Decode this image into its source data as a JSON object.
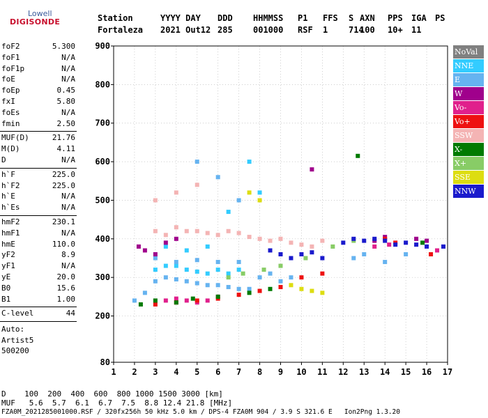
{
  "logo": {
    "line1": "Lowell",
    "line2": "DIGISONDE"
  },
  "header": {
    "row1": [
      "Station",
      "YYYY DAY",
      "DDD",
      "HHMMSS",
      "P1",
      "FFS",
      "S",
      "AXN",
      "PPS",
      "IGA",
      "PS"
    ],
    "row2": [
      "Fortaleza",
      "2021 Out12",
      "285",
      "001000",
      "RSF",
      "1",
      "714",
      "100",
      "10+",
      "11"
    ]
  },
  "params_group1": [
    {
      "k": "foF2",
      "v": "5.300"
    },
    {
      "k": "foF1",
      "v": "N/A"
    },
    {
      "k": "foF1p",
      "v": "N/A"
    },
    {
      "k": "foE",
      "v": "N/A"
    },
    {
      "k": "foEp",
      "v": "0.45"
    },
    {
      "k": "fxI",
      "v": "5.80"
    },
    {
      "k": "foEs",
      "v": "N/A"
    },
    {
      "k": "fmin",
      "v": "2.50"
    }
  ],
  "params_group2": [
    {
      "k": "MUF(D)",
      "v": "21.76"
    },
    {
      "k": "M(D)",
      "v": "4.11"
    },
    {
      "k": "D",
      "v": "N/A"
    }
  ],
  "params_group3": [
    {
      "k": "h`F",
      "v": "225.0"
    },
    {
      "k": "h`F2",
      "v": "225.0"
    },
    {
      "k": "h`E",
      "v": "N/A"
    },
    {
      "k": "h`Es",
      "v": "N/A"
    }
  ],
  "params_group4": [
    {
      "k": "hmF2",
      "v": "230.1"
    },
    {
      "k": "hmF1",
      "v": "N/A"
    },
    {
      "k": "hmE",
      "v": "110.0"
    },
    {
      "k": "yF2",
      "v": "8.9"
    },
    {
      "k": "yF1",
      "v": "N/A"
    },
    {
      "k": "yE",
      "v": "20.0"
    },
    {
      "k": "B0",
      "v": "15.6"
    },
    {
      "k": "B1",
      "v": "1.00"
    }
  ],
  "clevel": {
    "k": "C-level",
    "v": "44"
  },
  "auto": [
    "Auto:",
    "Artist5",
    "500200"
  ],
  "legend": [
    {
      "label": "NoVal",
      "color": "#808080"
    },
    {
      "label": "NNE",
      "color": "#33ccff"
    },
    {
      "label": "E",
      "color": "#66b3f0"
    },
    {
      "label": "W",
      "color": "#a0008c"
    },
    {
      "label": "Vo-",
      "color": "#e0208c"
    },
    {
      "label": "Vo+",
      "color": "#ee1111"
    },
    {
      "label": "SSW",
      "color": "#f4b4b4"
    },
    {
      "label": "X-",
      "color": "#007a00"
    },
    {
      "label": "X+",
      "color": "#88cc66"
    },
    {
      "label": "SSE",
      "color": "#dddd11"
    },
    {
      "label": "NNW",
      "color": "#1a1acc"
    }
  ],
  "footer": {
    "d_row": "D    100  200  400  600  800 1000 1500 3000 [km]",
    "muf_row": "MUF   5.6  5.7  6.1  6.7  7.5  8.8 12.4 21.8 [MHz]",
    "file_row": "FZA0M_2021285001000.RSF / 320fx256h 50 kHz 5.0 km / DPS-4 FZA0M 904 / 3.9 S 321.6 E   Ion2Png 1.3.20"
  },
  "chart_data": {
    "type": "scatter",
    "x_ticks": [
      "1",
      "2",
      "3",
      "4",
      "5",
      "6",
      "7",
      "8",
      "9",
      "10",
      "11",
      "12",
      "13",
      "14",
      "15",
      "16",
      "17"
    ],
    "y_ticks": [
      "80",
      "200",
      "300",
      "400",
      "500",
      "600",
      "700",
      "800",
      "900"
    ],
    "xlim": [
      1,
      17
    ],
    "ylim": [
      80,
      900
    ],
    "grid": true,
    "legend_position": "right",
    "series": [
      {
        "name": "NNE",
        "color": "#33ccff",
        "points": [
          [
            3.0,
            320
          ],
          [
            3.5,
            330
          ],
          [
            4.0,
            330
          ],
          [
            4.5,
            320
          ],
          [
            5.0,
            315
          ],
          [
            5.5,
            310
          ],
          [
            6.0,
            320
          ],
          [
            6.5,
            310
          ],
          [
            7.0,
            320
          ],
          [
            3.5,
            380
          ],
          [
            4.5,
            370
          ],
          [
            5.5,
            380
          ],
          [
            6.5,
            470
          ],
          [
            7.5,
            600
          ],
          [
            8.0,
            520
          ]
        ]
      },
      {
        "name": "E",
        "color": "#66b3f0",
        "points": [
          [
            2.0,
            240
          ],
          [
            2.5,
            260
          ],
          [
            3.0,
            290
          ],
          [
            3.5,
            300
          ],
          [
            4.0,
            295
          ],
          [
            4.5,
            290
          ],
          [
            5.0,
            285
          ],
          [
            5.5,
            280
          ],
          [
            6.0,
            280
          ],
          [
            6.5,
            275
          ],
          [
            7.0,
            270
          ],
          [
            7.5,
            270
          ],
          [
            8.0,
            300
          ],
          [
            8.5,
            310
          ],
          [
            9.0,
            290
          ],
          [
            9.5,
            300
          ],
          [
            3.0,
            350
          ],
          [
            4.0,
            340
          ],
          [
            5.0,
            345
          ],
          [
            6.0,
            340
          ],
          [
            7.0,
            340
          ],
          [
            12.5,
            350
          ],
          [
            13.0,
            360
          ],
          [
            14.0,
            340
          ],
          [
            15.0,
            360
          ],
          [
            5.0,
            600
          ],
          [
            6.0,
            560
          ],
          [
            7.0,
            500
          ]
        ]
      },
      {
        "name": "W",
        "color": "#a0008c",
        "points": [
          [
            2.2,
            380
          ],
          [
            2.5,
            370
          ],
          [
            3.0,
            360
          ],
          [
            3.5,
            390
          ],
          [
            4.0,
            400
          ],
          [
            10.5,
            580
          ],
          [
            13.5,
            395
          ],
          [
            14.0,
            405
          ],
          [
            15.5,
            400
          ],
          [
            16.0,
            395
          ]
        ]
      },
      {
        "name": "Vo-",
        "color": "#e0208c",
        "points": [
          [
            3.5,
            240
          ],
          [
            4.0,
            245
          ],
          [
            4.5,
            240
          ],
          [
            5.0,
            235
          ],
          [
            5.5,
            240
          ],
          [
            6.0,
            250
          ],
          [
            13.5,
            380
          ],
          [
            14.2,
            385
          ],
          [
            16.5,
            370
          ]
        ]
      },
      {
        "name": "Vo+",
        "color": "#ee1111",
        "points": [
          [
            3.0,
            230
          ],
          [
            4.0,
            235
          ],
          [
            5.0,
            240
          ],
          [
            6.0,
            245
          ],
          [
            7.0,
            255
          ],
          [
            8.0,
            265
          ],
          [
            9.0,
            275
          ],
          [
            10.0,
            300
          ],
          [
            11.0,
            310
          ],
          [
            14.0,
            400
          ],
          [
            14.5,
            390
          ],
          [
            16.2,
            360
          ]
        ]
      },
      {
        "name": "SSW",
        "color": "#f4b4b4",
        "points": [
          [
            3.0,
            420
          ],
          [
            3.5,
            410
          ],
          [
            4.0,
            430
          ],
          [
            4.5,
            420
          ],
          [
            5.0,
            420
          ],
          [
            5.5,
            415
          ],
          [
            6.0,
            410
          ],
          [
            6.5,
            420
          ],
          [
            7.0,
            415
          ],
          [
            7.5,
            405
          ],
          [
            8.0,
            400
          ],
          [
            8.5,
            395
          ],
          [
            9.0,
            400
          ],
          [
            9.5,
            390
          ],
          [
            10.0,
            385
          ],
          [
            10.5,
            380
          ],
          [
            11.0,
            395
          ],
          [
            3.0,
            500
          ],
          [
            4.0,
            520
          ],
          [
            5.0,
            540
          ]
        ]
      },
      {
        "name": "X-",
        "color": "#007a00",
        "points": [
          [
            2.3,
            230
          ],
          [
            3.0,
            240
          ],
          [
            4.0,
            235
          ],
          [
            4.8,
            245
          ],
          [
            6.0,
            250
          ],
          [
            7.5,
            260
          ],
          [
            8.5,
            270
          ],
          [
            12.7,
            615
          ],
          [
            15.8,
            390
          ]
        ]
      },
      {
        "name": "X+",
        "color": "#88cc66",
        "points": [
          [
            6.5,
            300
          ],
          [
            7.2,
            310
          ],
          [
            8.2,
            320
          ],
          [
            9.0,
            330
          ],
          [
            10.2,
            350
          ],
          [
            11.5,
            380
          ],
          [
            12.5,
            395
          ]
        ]
      },
      {
        "name": "SSE",
        "color": "#dddd11",
        "points": [
          [
            7.5,
            520
          ],
          [
            8.0,
            500
          ],
          [
            9.5,
            280
          ],
          [
            10.0,
            270
          ],
          [
            10.5,
            265
          ],
          [
            11.0,
            260
          ]
        ]
      },
      {
        "name": "NNW",
        "color": "#1a1acc",
        "points": [
          [
            8.5,
            370
          ],
          [
            9.0,
            360
          ],
          [
            9.5,
            350
          ],
          [
            10.0,
            360
          ],
          [
            10.5,
            365
          ],
          [
            11.0,
            350
          ],
          [
            12.0,
            390
          ],
          [
            12.5,
            400
          ],
          [
            13.0,
            395
          ],
          [
            13.5,
            400
          ],
          [
            14.0,
            395
          ],
          [
            14.5,
            385
          ],
          [
            15.0,
            390
          ],
          [
            15.5,
            385
          ],
          [
            16.0,
            380
          ],
          [
            16.8,
            380
          ]
        ]
      }
    ]
  }
}
